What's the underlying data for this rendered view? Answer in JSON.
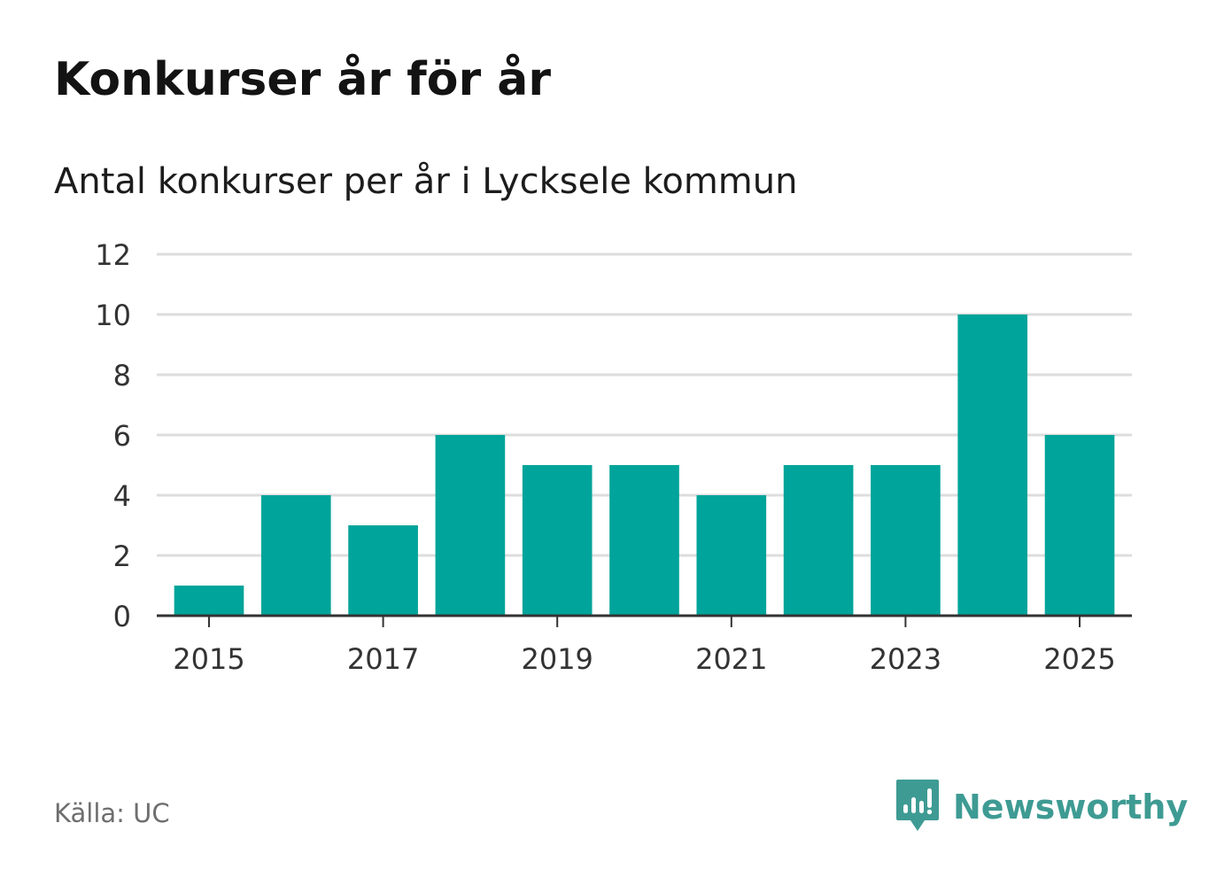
{
  "header": {
    "title": "Konkurser år för år",
    "subtitle": "Antal konkurser per år i Lycksele kommun"
  },
  "footer": {
    "source": "Källa: UC",
    "brand": "Newsworthy",
    "brand_icon": "newsworthy-logo-icon"
  },
  "colors": {
    "bar": "#00a49a",
    "grid": "#dddddd",
    "axis": "#333333",
    "brand": "#3e9b93",
    "source": "#6e6e6e"
  },
  "chart_data": {
    "type": "bar",
    "title": "Konkurser år för år",
    "subtitle": "Antal konkurser per år i Lycksele kommun",
    "xlabel": "",
    "ylabel": "",
    "categories": [
      "2015",
      "2016",
      "2017",
      "2018",
      "2019",
      "2020",
      "2021",
      "2022",
      "2023",
      "2024",
      "2025"
    ],
    "values": [
      1,
      4,
      3,
      6,
      5,
      5,
      4,
      5,
      5,
      10,
      6
    ],
    "ylim": [
      0,
      12
    ],
    "yticks": [
      0,
      2,
      4,
      6,
      8,
      10,
      12
    ],
    "xtick_labels": [
      "2015",
      "2017",
      "2019",
      "2021",
      "2023",
      "2025"
    ],
    "grid": true,
    "legend": "none"
  }
}
